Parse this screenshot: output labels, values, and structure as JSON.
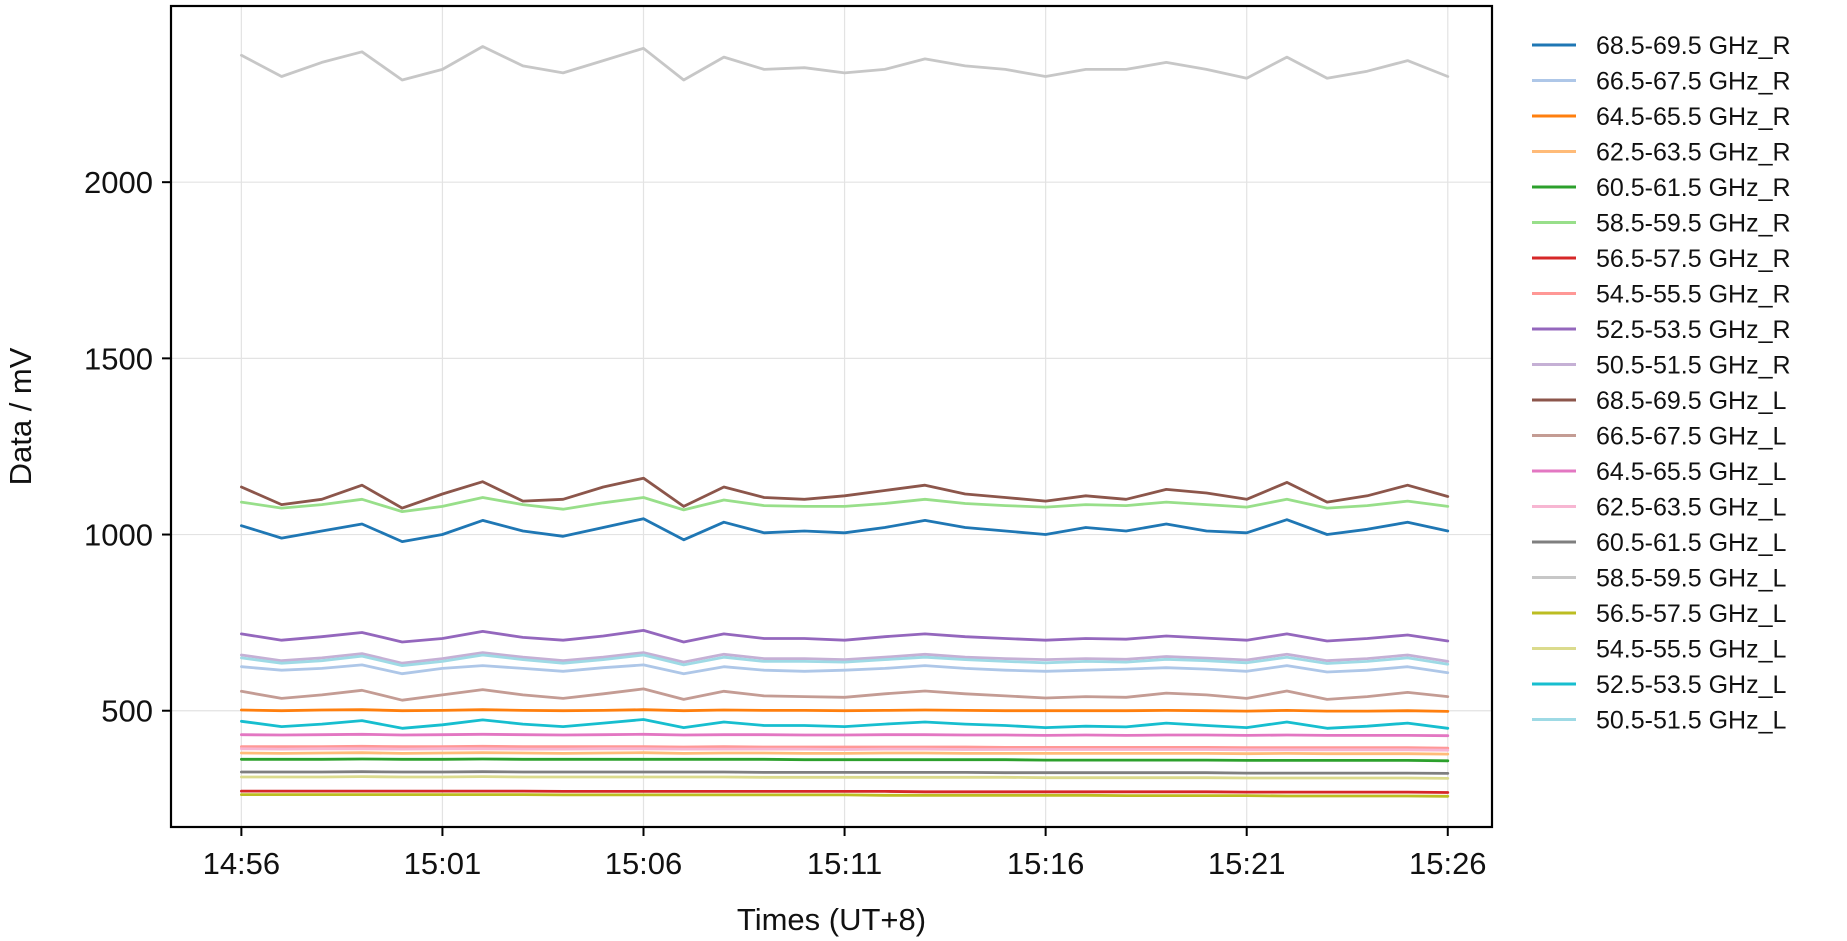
{
  "chart_data": {
    "type": "line",
    "title": "",
    "xlabel": "Times (UT+8)",
    "ylabel": "Data / mV",
    "x_ticks": [
      "14:56",
      "15:01",
      "15:06",
      "15:11",
      "15:16",
      "15:21",
      "15:26"
    ],
    "x_tick_minutes": [
      0,
      5,
      10,
      15,
      20,
      25,
      30
    ],
    "xlim_minutes": [
      -1.75,
      31.1
    ],
    "ylim": [
      170,
      2500
    ],
    "y_ticks": [
      500,
      1000,
      1500,
      2000
    ],
    "grid": true,
    "legend_position": "outside-right",
    "x": [
      0,
      1,
      2,
      3,
      4,
      5,
      6,
      7,
      8,
      9,
      10,
      11,
      12,
      13,
      14,
      15,
      16,
      17,
      18,
      19,
      20,
      21,
      22,
      23,
      24,
      25,
      26,
      27,
      28,
      29,
      30
    ],
    "series": [
      {
        "name": "68.5-69.5 GHz_R",
        "color": "#1f77b4",
        "values": [
          1025,
          990,
          1010,
          1030,
          980,
          1000,
          1040,
          1010,
          995,
          1020,
          1045,
          985,
          1035,
          1005,
          1010,
          1005,
          1020,
          1040,
          1020,
          1010,
          1000,
          1020,
          1010,
          1030,
          1010,
          1005,
          1042,
          1000,
          1015,
          1035,
          1010
        ]
      },
      {
        "name": "66.5-67.5 GHz_R",
        "color": "#aec7e8",
        "values": [
          625,
          615,
          620,
          630,
          605,
          620,
          628,
          620,
          612,
          622,
          630,
          605,
          625,
          615,
          612,
          615,
          620,
          628,
          620,
          615,
          612,
          615,
          618,
          622,
          618,
          612,
          628,
          610,
          615,
          625,
          608
        ]
      },
      {
        "name": "64.5-65.5 GHz_R",
        "color": "#ff7f0e",
        "values": [
          502,
          500,
          502,
          503,
          500,
          501,
          503,
          501,
          500,
          501,
          503,
          500,
          502,
          501,
          501,
          500,
          501,
          502,
          501,
          500,
          500,
          500,
          500,
          501,
          500,
          499,
          501,
          499,
          499,
          500,
          498
        ]
      },
      {
        "name": "62.5-63.5 GHz_R",
        "color": "#ffbb78",
        "values": [
          380,
          379,
          380,
          381,
          379,
          380,
          381,
          380,
          379,
          380,
          381,
          379,
          380,
          380,
          379,
          379,
          380,
          380,
          379,
          379,
          379,
          379,
          379,
          379,
          379,
          378,
          379,
          378,
          378,
          378,
          377
        ]
      },
      {
        "name": "60.5-61.5 GHz_R",
        "color": "#2ca02c",
        "values": [
          362,
          362,
          362,
          363,
          362,
          362,
          363,
          362,
          362,
          362,
          362,
          362,
          362,
          362,
          361,
          361,
          361,
          361,
          361,
          361,
          360,
          360,
          360,
          360,
          360,
          359,
          359,
          359,
          359,
          359,
          358
        ]
      },
      {
        "name": "58.5-59.5 GHz_R",
        "color": "#98df8a",
        "values": [
          1092,
          1075,
          1085,
          1100,
          1065,
          1080,
          1105,
          1085,
          1072,
          1090,
          1105,
          1070,
          1098,
          1082,
          1080,
          1080,
          1088,
          1100,
          1088,
          1082,
          1078,
          1085,
          1082,
          1092,
          1085,
          1078,
          1100,
          1075,
          1082,
          1095,
          1080
        ]
      },
      {
        "name": "56.5-57.5 GHz_R",
        "color": "#d62728",
        "values": [
          272,
          272,
          272,
          272,
          272,
          272,
          272,
          272,
          271,
          271,
          271,
          271,
          271,
          271,
          271,
          271,
          271,
          270,
          270,
          270,
          270,
          270,
          270,
          270,
          270,
          269,
          269,
          269,
          269,
          269,
          268
        ]
      },
      {
        "name": "54.5-55.5 GHz_R",
        "color": "#ff9896",
        "values": [
          398,
          398,
          398,
          399,
          398,
          398,
          399,
          398,
          398,
          398,
          398,
          397,
          398,
          397,
          397,
          397,
          397,
          397,
          397,
          396,
          396,
          396,
          396,
          396,
          396,
          395,
          395,
          395,
          395,
          395,
          394
        ]
      },
      {
        "name": "52.5-53.5 GHz_R",
        "color": "#9467bd",
        "values": [
          718,
          700,
          710,
          722,
          695,
          705,
          725,
          708,
          700,
          712,
          728,
          695,
          718,
          705,
          705,
          700,
          710,
          718,
          710,
          705,
          700,
          705,
          703,
          712,
          706,
          700,
          718,
          698,
          705,
          715,
          698
        ]
      },
      {
        "name": "50.5-51.5 GHz_R",
        "color": "#c5b0d5",
        "values": [
          658,
          642,
          650,
          662,
          635,
          648,
          665,
          652,
          642,
          652,
          665,
          638,
          660,
          648,
          648,
          645,
          652,
          660,
          652,
          648,
          645,
          648,
          646,
          654,
          649,
          644,
          660,
          642,
          648,
          658,
          640
        ]
      },
      {
        "name": "68.5-69.5 GHz_L",
        "color": "#8c564b",
        "values": [
          1135,
          1085,
          1100,
          1140,
          1075,
          1115,
          1150,
          1095,
          1100,
          1135,
          1160,
          1080,
          1135,
          1105,
          1100,
          1110,
          1125,
          1140,
          1115,
          1105,
          1095,
          1110,
          1100,
          1128,
          1118,
          1100,
          1148,
          1092,
          1110,
          1140,
          1108
        ]
      },
      {
        "name": "66.5-67.5 GHz_L",
        "color": "#c49c94",
        "values": [
          555,
          535,
          545,
          558,
          530,
          545,
          560,
          545,
          535,
          548,
          562,
          532,
          555,
          542,
          540,
          538,
          548,
          556,
          548,
          542,
          536,
          540,
          538,
          550,
          545,
          535,
          556,
          532,
          540,
          552,
          540
        ]
      },
      {
        "name": "64.5-65.5 GHz_L",
        "color": "#e377c2",
        "values": [
          432,
          431,
          432,
          433,
          431,
          432,
          433,
          432,
          431,
          432,
          433,
          431,
          432,
          432,
          431,
          431,
          432,
          432,
          431,
          431,
          430,
          431,
          430,
          431,
          431,
          430,
          431,
          430,
          430,
          430,
          429
        ]
      },
      {
        "name": "62.5-63.5 GHz_L",
        "color": "#f7b6d2",
        "values": [
          392,
          391,
          392,
          392,
          391,
          392,
          392,
          391,
          391,
          392,
          392,
          391,
          391,
          391,
          391,
          390,
          391,
          391,
          390,
          390,
          390,
          390,
          390,
          390,
          390,
          389,
          389,
          389,
          389,
          389,
          388
        ]
      },
      {
        "name": "60.5-61.5 GHz_L",
        "color": "#7f7f7f",
        "values": [
          326,
          326,
          326,
          327,
          326,
          326,
          327,
          326,
          326,
          326,
          326,
          326,
          326,
          325,
          325,
          325,
          325,
          325,
          325,
          324,
          324,
          324,
          324,
          324,
          324,
          323,
          323,
          323,
          323,
          323,
          322
        ]
      },
      {
        "name": "58.5-59.5 GHz_L",
        "color": "#c7c7c7",
        "values": [
          2360,
          2300,
          2340,
          2370,
          2290,
          2320,
          2385,
          2330,
          2310,
          2345,
          2380,
          2290,
          2355,
          2320,
          2325,
          2310,
          2320,
          2350,
          2330,
          2320,
          2300,
          2320,
          2320,
          2340,
          2320,
          2295,
          2355,
          2295,
          2315,
          2345,
          2300
        ]
      },
      {
        "name": "56.5-57.5 GHz_L",
        "color": "#bcbd22",
        "values": [
          262,
          262,
          262,
          262,
          262,
          262,
          262,
          262,
          261,
          261,
          261,
          261,
          261,
          261,
          261,
          261,
          260,
          260,
          260,
          260,
          260,
          260,
          259,
          259,
          259,
          259,
          258,
          258,
          258,
          258,
          257
        ]
      },
      {
        "name": "54.5-55.5 GHz_L",
        "color": "#dbdb8d",
        "values": [
          312,
          312,
          312,
          313,
          312,
          312,
          313,
          312,
          312,
          312,
          312,
          312,
          312,
          311,
          311,
          311,
          311,
          311,
          311,
          311,
          310,
          310,
          310,
          310,
          310,
          309,
          309,
          309,
          309,
          309,
          308
        ]
      },
      {
        "name": "52.5-53.5 GHz_L",
        "color": "#17becf",
        "values": [
          470,
          455,
          462,
          472,
          450,
          460,
          474,
          462,
          455,
          465,
          475,
          452,
          468,
          458,
          458,
          455,
          462,
          468,
          462,
          458,
          452,
          456,
          454,
          465,
          458,
          452,
          468,
          450,
          456,
          465,
          450
        ]
      },
      {
        "name": "50.5-51.5 GHz_L",
        "color": "#9edae5",
        "values": [
          650,
          635,
          642,
          655,
          628,
          640,
          658,
          645,
          635,
          645,
          658,
          630,
          652,
          640,
          640,
          638,
          645,
          652,
          645,
          640,
          636,
          640,
          638,
          646,
          642,
          636,
          652,
          634,
          640,
          650,
          632
        ]
      }
    ]
  }
}
